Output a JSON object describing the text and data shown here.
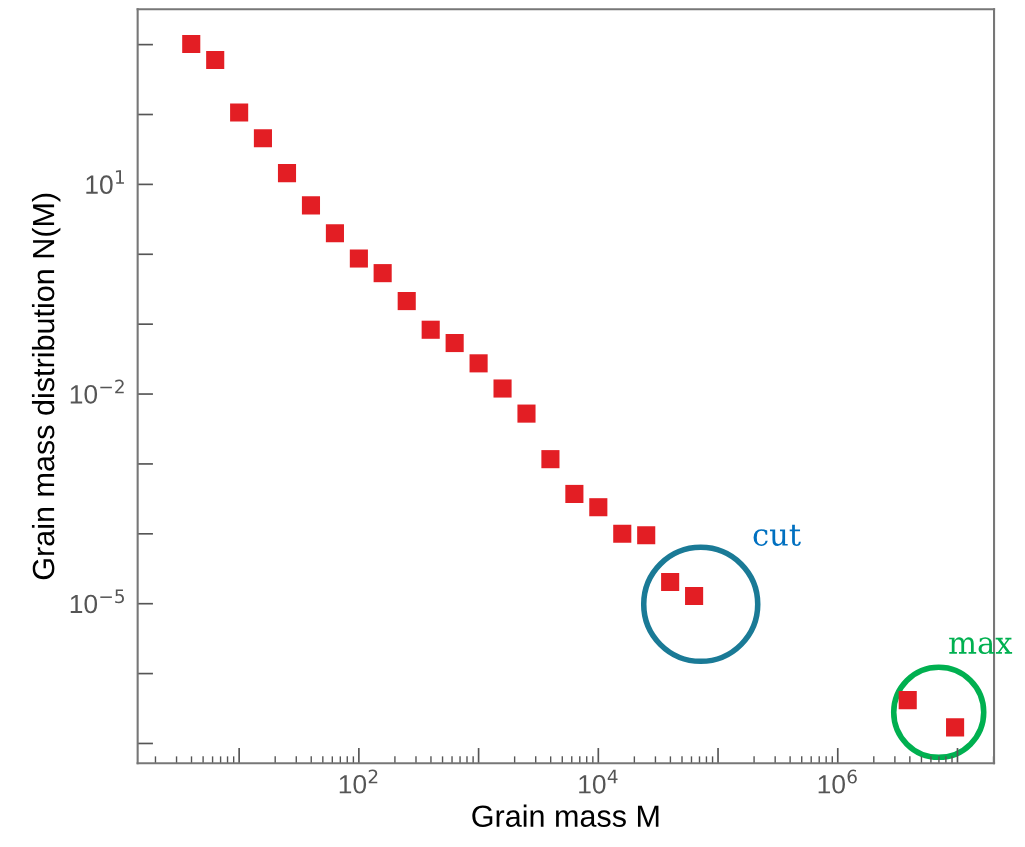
{
  "chart_data": {
    "type": "scatter",
    "xlabel": "Grain mass M",
    "ylabel": "Grain mass distribution N(M)",
    "log": "xy",
    "grid": false,
    "marker": "square",
    "xlim": [
      1.42,
      20200000
    ],
    "ylim": [
      5.2e-08,
      3200
    ],
    "xticks": [
      {
        "value": 10,
        "label": null
      },
      {
        "value": 100,
        "label": "10$^{2}$"
      },
      {
        "value": 1000,
        "label": null
      },
      {
        "value": 10000,
        "label": "10$^{4}$"
      },
      {
        "value": 100000,
        "label": null
      },
      {
        "value": 1000000,
        "label": "10$^{6}$"
      },
      {
        "value": 10000000,
        "label": null
      }
    ],
    "yticks": [
      {
        "value": 1e-07,
        "label": null
      },
      {
        "value": 1e-06,
        "label": null
      },
      {
        "value": 1e-05,
        "label": "10$^{−5}$"
      },
      {
        "value": 0.0001,
        "label": null
      },
      {
        "value": 0.001,
        "label": null
      },
      {
        "value": 0.01,
        "label": "10$^{−2}$"
      },
      {
        "value": 0.1,
        "label": null
      },
      {
        "value": 1,
        "label": null
      },
      {
        "value": 10,
        "label": "10$^{1}$"
      },
      {
        "value": 100,
        "label": null
      },
      {
        "value": 1000,
        "label": null
      }
    ],
    "series": [
      {
        "color": "#e31e24",
        "x": [
          3.98,
          6.31,
          10,
          15.8,
          25.1,
          39.8,
          63.1,
          100,
          158,
          251,
          398,
          631,
          1000,
          1585,
          2512,
          3981,
          6310,
          10000,
          15850,
          25120,
          39810,
          63100,
          3840000,
          9550000
        ],
        "values": [
          1020,
          603,
          107,
          45.7,
          14.5,
          5.01,
          2.0,
          0.87,
          0.537,
          0.214,
          0.0832,
          0.0537,
          0.0275,
          0.012,
          0.00525,
          0.00117,
          0.000372,
          0.00024,
          0.0001,
          9.55e-05,
          2.04e-05,
          1.29e-05,
          4.17e-07,
          1.7e-07
        ]
      }
    ],
    "annotations": [
      "cut",
      "max"
    ]
  }
}
